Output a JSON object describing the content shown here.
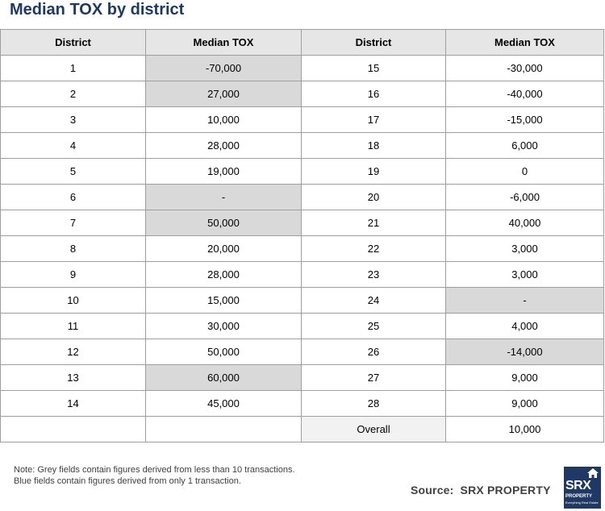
{
  "title": "Median TOX by district",
  "table": {
    "headers": [
      "District",
      "Median TOX",
      "District",
      "Median TOX"
    ],
    "rows": [
      {
        "d1": "1",
        "v1": "-70,000",
        "g1": true,
        "d2": "15",
        "v2": "-30,000",
        "g2": false
      },
      {
        "d1": "2",
        "v1": "27,000",
        "g1": true,
        "d2": "16",
        "v2": "-40,000",
        "g2": false
      },
      {
        "d1": "3",
        "v1": "10,000",
        "g1": false,
        "d2": "17",
        "v2": "-15,000",
        "g2": false
      },
      {
        "d1": "4",
        "v1": "28,000",
        "g1": false,
        "d2": "18",
        "v2": "6,000",
        "g2": false
      },
      {
        "d1": "5",
        "v1": "19,000",
        "g1": false,
        "d2": "19",
        "v2": "0",
        "g2": false
      },
      {
        "d1": "6",
        "v1": "-",
        "g1": true,
        "d2": "20",
        "v2": "-6,000",
        "g2": false
      },
      {
        "d1": "7",
        "v1": "50,000",
        "g1": true,
        "d2": "21",
        "v2": "40,000",
        "g2": false
      },
      {
        "d1": "8",
        "v1": "20,000",
        "g1": false,
        "d2": "22",
        "v2": "3,000",
        "g2": false
      },
      {
        "d1": "9",
        "v1": "28,000",
        "g1": false,
        "d2": "23",
        "v2": "3,000",
        "g2": false
      },
      {
        "d1": "10",
        "v1": "15,000",
        "g1": false,
        "d2": "24",
        "v2": "-",
        "g2": true
      },
      {
        "d1": "11",
        "v1": "30,000",
        "g1": false,
        "d2": "25",
        "v2": "4,000",
        "g2": false
      },
      {
        "d1": "12",
        "v1": "50,000",
        "g1": false,
        "d2": "26",
        "v2": "-14,000",
        "g2": true
      },
      {
        "d1": "13",
        "v1": "60,000",
        "g1": true,
        "d2": "27",
        "v2": "9,000",
        "g2": false
      },
      {
        "d1": "14",
        "v1": "45,000",
        "g1": false,
        "d2": "28",
        "v2": "9,000",
        "g2": false
      }
    ],
    "overall_label": "Overall",
    "overall_value": "10,000"
  },
  "colors": {
    "title": "#1f3864",
    "header_bg": "#e7e6e6",
    "grey_cell": "#d9d9d9",
    "overall_bg": "#f2f2f2",
    "logo_bg": "#1f3864"
  },
  "note": {
    "line1": "Note: Grey fields contain figures derived from less than 10 transactions.",
    "line2": "Blue fields contain figures derived from only 1 transaction."
  },
  "source": {
    "label": "Source:",
    "value": "SRX PROPERTY"
  },
  "logo": {
    "icon": "house-icon",
    "brand": "SRX",
    "sub": "PROPERTY",
    "tagline": "Everything Real Estate"
  }
}
